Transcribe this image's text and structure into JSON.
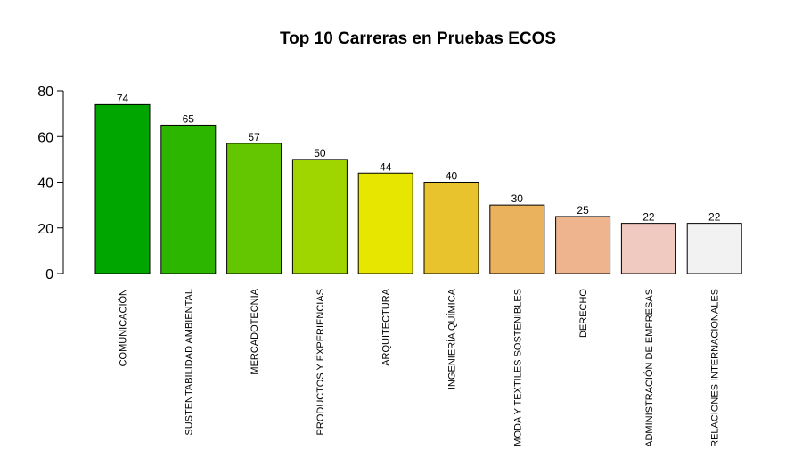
{
  "chart_data": {
    "type": "bar",
    "title": "Top 10 Carreras en Pruebas ECOS",
    "xlabel": "",
    "ylabel": "",
    "ylim": [
      0,
      80
    ],
    "yticks": [
      0,
      20,
      40,
      60,
      80
    ],
    "categories": [
      "COMUNICACIÓN",
      "SUSTENTABILIDAD AMBIENTAL",
      "MERCADOTECNIA",
      "PRODUCTOS Y EXPERIENCIAS",
      "ARQUITECTURA",
      "INGENIERÍA QUÍMICA",
      "MODA Y TEXTILES SOSTENIBLES",
      "DERECHO",
      "ADMINISTRACIÓN DE EMPRESAS",
      "RELACIONES INTERNACIONALES"
    ],
    "values": [
      74,
      65,
      57,
      50,
      44,
      40,
      30,
      25,
      22,
      22
    ],
    "colors": [
      "#00A600",
      "#2DB600",
      "#63C600",
      "#A0D600",
      "#E6E600",
      "#E8C32E",
      "#EBB25E",
      "#EDB48E",
      "#F0C9C0",
      "#F2F2F2"
    ],
    "grid": false,
    "legend": "none"
  }
}
